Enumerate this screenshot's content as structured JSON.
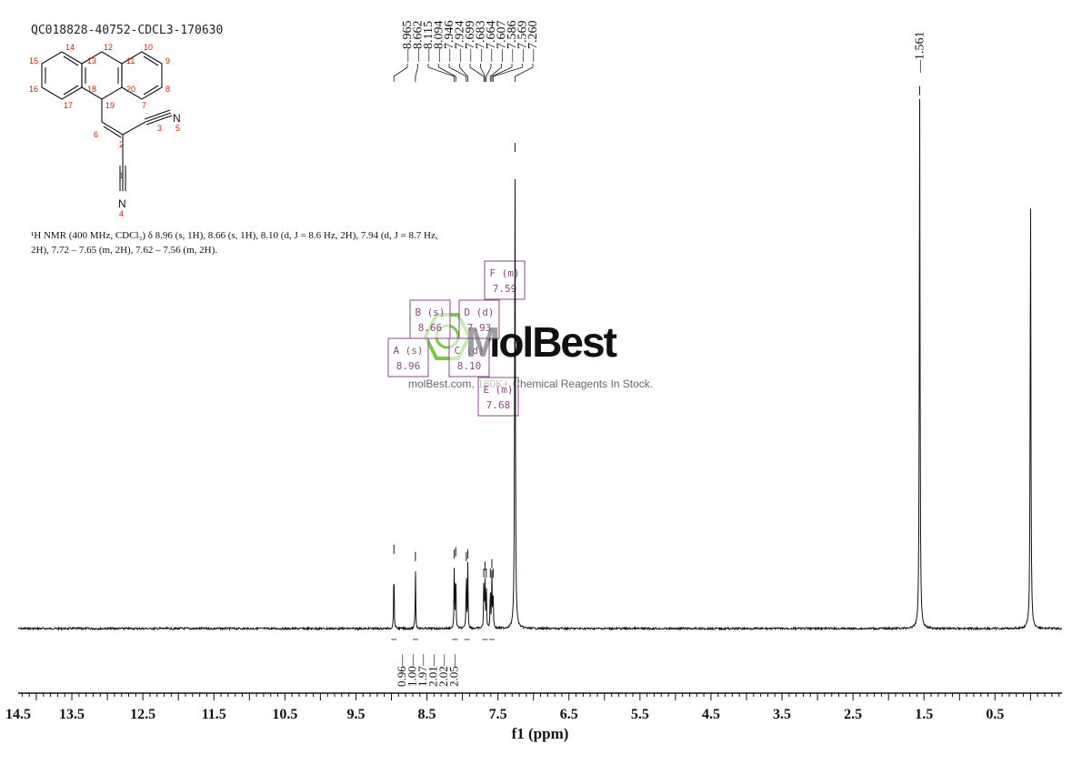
{
  "header": {
    "sample_id": "QC018828-40752-CDCL3-170630"
  },
  "structure": {
    "atom_numbers": [
      "14",
      "12",
      "10",
      "15",
      "13",
      "11",
      "9",
      "16",
      "18",
      "20",
      "8",
      "17",
      "19",
      "7",
      "6",
      "2",
      "3",
      "5",
      "1",
      "4"
    ],
    "nitrogen_labels": [
      "N",
      "N"
    ]
  },
  "nmr_description": {
    "line1": "¹H NMR (400 MHz, CDCl₃) δ 8.96 (s, 1H), 8.66 (s, 1H), 8.10 (d, J = 8.6 Hz, 2H), 7.94 (d, J = 8.7 Hz,",
    "line2": "2H), 7.72 – 7.65 (m, 2H), 7.62 – 7.56 (m, 2H)."
  },
  "watermark": {
    "brand": "MolBest",
    "tagline": "molBest.com, 180K+ Chemical Reagents In Stock."
  },
  "colors": {
    "spectrum": "#111111",
    "multiplet_box": "#8a4a8a",
    "watermark_hex": "#7ac943",
    "atom_number": "#cc2200"
  },
  "chart_data": {
    "type": "line",
    "xlabel": "f1 (ppm)",
    "x_reversed": true,
    "xlim": [
      14.0,
      -1.0
    ],
    "ticks": [
      {
        "value": 14.5,
        "label": "14.5"
      },
      {
        "value": 13.5,
        "label": "13.5"
      },
      {
        "value": 12.5,
        "label": "12.5"
      },
      {
        "value": 11.5,
        "label": "11.5"
      },
      {
        "value": 10.5,
        "label": "10.5"
      },
      {
        "value": 9.5,
        "label": "9.5"
      },
      {
        "value": 8.5,
        "label": "8.5"
      },
      {
        "value": 7.5,
        "label": "7.5"
      },
      {
        "value": 6.5,
        "label": "6.5"
      },
      {
        "value": 5.5,
        "label": "5.5"
      },
      {
        "value": 4.5,
        "label": "4.5"
      },
      {
        "value": 3.5,
        "label": "3.5"
      },
      {
        "value": 2.5,
        "label": "2.5"
      },
      {
        "value": 1.5,
        "label": "1.5"
      },
      {
        "value": 0.5,
        "label": "0.5"
      }
    ],
    "peak_labels": [
      {
        "ppm": 8.965,
        "label": "8.965"
      },
      {
        "ppm": 8.662,
        "label": "8.662"
      },
      {
        "ppm": 8.115,
        "label": "8.115"
      },
      {
        "ppm": 8.094,
        "label": "8.094"
      },
      {
        "ppm": 7.946,
        "label": "7.946"
      },
      {
        "ppm": 7.924,
        "label": "7.924"
      },
      {
        "ppm": 7.699,
        "label": "7.699"
      },
      {
        "ppm": 7.683,
        "label": "7.683"
      },
      {
        "ppm": 7.664,
        "label": "7.664"
      },
      {
        "ppm": 7.607,
        "label": "7.607"
      },
      {
        "ppm": 7.586,
        "label": "7.586"
      },
      {
        "ppm": 7.569,
        "label": "7.569"
      },
      {
        "ppm": 7.26,
        "label": "7.260"
      },
      {
        "ppm": 1.561,
        "label": "1.561"
      }
    ],
    "peaks": [
      {
        "ppm": 8.965,
        "intensity": 0.15
      },
      {
        "ppm": 8.662,
        "intensity": 0.135
      },
      {
        "ppm": 8.115,
        "intensity": 0.14
      },
      {
        "ppm": 8.094,
        "intensity": 0.145
      },
      {
        "ppm": 7.946,
        "intensity": 0.135
      },
      {
        "ppm": 7.924,
        "intensity": 0.14
      },
      {
        "ppm": 7.699,
        "intensity": 0.1
      },
      {
        "ppm": 7.683,
        "intensity": 0.115
      },
      {
        "ppm": 7.664,
        "intensity": 0.1
      },
      {
        "ppm": 7.607,
        "intensity": 0.1
      },
      {
        "ppm": 7.586,
        "intensity": 0.12
      },
      {
        "ppm": 7.569,
        "intensity": 0.1
      },
      {
        "ppm": 7.26,
        "intensity": 1.0
      },
      {
        "ppm": 1.561,
        "intensity": 1.12
      },
      {
        "ppm": 0.0,
        "intensity": 0.93
      }
    ],
    "integrals": [
      {
        "ppm": 8.965,
        "value": "0.96"
      },
      {
        "ppm": 8.662,
        "value": "1.00"
      },
      {
        "ppm": 8.104,
        "value": "1.97"
      },
      {
        "ppm": 7.935,
        "value": "2.01"
      },
      {
        "ppm": 7.683,
        "value": "2.02"
      },
      {
        "ppm": 7.588,
        "value": "2.05"
      }
    ],
    "multiplets": [
      {
        "letter": "A",
        "type": "(s)",
        "value": "8.96"
      },
      {
        "letter": "B",
        "type": "(s)",
        "value": "8.66"
      },
      {
        "letter": "C",
        "type": "(d)",
        "value": "8.10"
      },
      {
        "letter": "D",
        "type": "(d)",
        "value": "7.93"
      },
      {
        "letter": "E",
        "type": "(m)",
        "value": "7.68"
      },
      {
        "letter": "F",
        "type": "(m)",
        "value": "7.59"
      }
    ]
  }
}
